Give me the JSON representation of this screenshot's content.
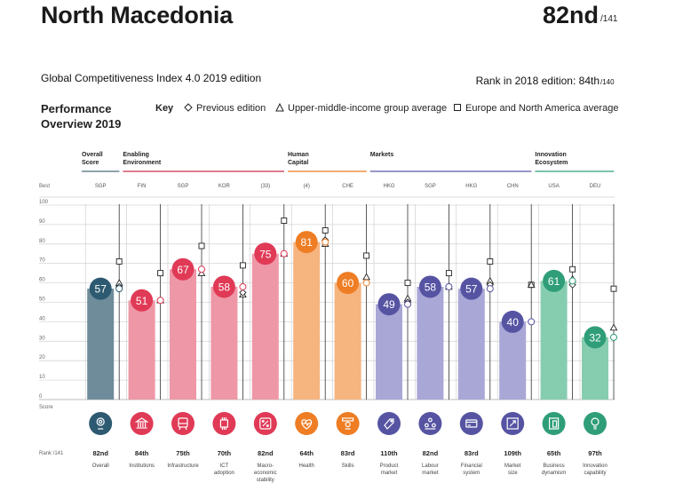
{
  "header": {
    "country": "North Macedonia",
    "rank": "82nd",
    "rank_of": "/141",
    "edition": "Global Competitiveness Index 4.0 2019 edition",
    "rank_2018": "Rank in 2018 edition: 84th",
    "rank_2018_of": "/140"
  },
  "section": {
    "title_line1": "Performance",
    "title_line2": "Overview 2019"
  },
  "key": {
    "label": "Key",
    "items": [
      {
        "symbol": "diamond",
        "label": "Previous edition"
      },
      {
        "symbol": "triangle",
        "label": "Upper-middle-income group average"
      },
      {
        "symbol": "square",
        "label": "Europe and North America average"
      }
    ]
  },
  "chart_data": {
    "type": "bar",
    "ylim": [
      0,
      100
    ],
    "yticks": [
      0,
      10,
      20,
      30,
      40,
      50,
      60,
      70,
      80,
      90,
      100
    ],
    "best_label": "Best",
    "score_label": "Score",
    "rank_label": "Rank /141",
    "groups": [
      {
        "name": "Overall Score",
        "line1": "Overall",
        "line2": "Score",
        "color": "#4e6e7e",
        "start": 0,
        "end": 0
      },
      {
        "name": "Enabling Environment",
        "line1": "Enabling",
        "line2": "Environment",
        "color": "#c8334a",
        "start": 1,
        "end": 4
      },
      {
        "name": "Human Capital",
        "line1": "Human",
        "line2": "Capital",
        "color": "#e97c20",
        "start": 5,
        "end": 6
      },
      {
        "name": "Markets",
        "line1": "Markets",
        "line2": "",
        "color": "#5a58a6",
        "start": 7,
        "end": 10
      },
      {
        "name": "Innovation Ecosystem",
        "line1": "Innovation",
        "line2": "Ecosystem",
        "color": "#2f9e78",
        "start": 11,
        "end": 12
      }
    ],
    "pillars": [
      {
        "name": "Overall",
        "label_lines": [
          "Overall"
        ],
        "best": "SGP",
        "score": 57,
        "previous": 58,
        "income_avg": 60,
        "region_avg": 71,
        "rank": "82nd",
        "icon": "overall-icon",
        "bar": "#6f8c9a",
        "circle": "#2d5a70"
      },
      {
        "name": "Institutions",
        "label_lines": [
          "Institutions"
        ],
        "best": "FIN",
        "score": 51,
        "previous": 51,
        "income_avg": 51,
        "region_avg": 65,
        "rank": "84th",
        "icon": "institutions-icon",
        "bar": "#ee97a7",
        "circle": "#e03a56"
      },
      {
        "name": "Infrastructure",
        "label_lines": [
          "Infrastructure"
        ],
        "best": "SGP",
        "score": 67,
        "previous": 67,
        "income_avg": 65,
        "region_avg": 79,
        "rank": "75th",
        "icon": "infrastructure-icon",
        "bar": "#ee97a7",
        "circle": "#e03a56"
      },
      {
        "name": "ICT adoption",
        "label_lines": [
          "ICT",
          "adoption"
        ],
        "best": "KOR",
        "score": 58,
        "previous": 55,
        "income_avg": 54,
        "region_avg": 69,
        "rank": "70th",
        "icon": "ict-icon",
        "bar": "#ee97a7",
        "circle": "#e03a56"
      },
      {
        "name": "Macro-economic stability",
        "label_lines": [
          "Macro-",
          "economic",
          "stability"
        ],
        "best": "(33)",
        "score": 75,
        "previous": 75,
        "income_avg": 75,
        "region_avg": 92,
        "rank": "82nd",
        "icon": "macro-icon",
        "bar": "#ee97a7",
        "circle": "#e03a56"
      },
      {
        "name": "Health",
        "label_lines": [
          "Health"
        ],
        "best": "(4)",
        "score": 81,
        "previous": 82,
        "income_avg": 80,
        "region_avg": 87,
        "rank": "64th",
        "icon": "health-icon",
        "bar": "#f6b47f",
        "circle": "#ee7d24"
      },
      {
        "name": "Skills",
        "label_lines": [
          "Skills"
        ],
        "best": "CHE",
        "score": 60,
        "previous": 60,
        "income_avg": 63,
        "region_avg": 74,
        "rank": "83rd",
        "icon": "skills-icon",
        "bar": "#f6b47f",
        "circle": "#ee7d24"
      },
      {
        "name": "Product market",
        "label_lines": [
          "Product",
          "market"
        ],
        "best": "HKG",
        "score": 49,
        "previous": 50,
        "income_avg": 52,
        "region_avg": 60,
        "rank": "110th",
        "icon": "product-market-icon",
        "bar": "#a9a7d6",
        "circle": "#5654a2"
      },
      {
        "name": "Labour market",
        "label_lines": [
          "Labour",
          "market"
        ],
        "best": "SGP",
        "score": 58,
        "previous": 58,
        "income_avg": 58,
        "region_avg": 65,
        "rank": "82nd",
        "icon": "labour-market-icon",
        "bar": "#a9a7d6",
        "circle": "#5654a2"
      },
      {
        "name": "Financial system",
        "label_lines": [
          "Financial",
          "system"
        ],
        "best": "HKG",
        "score": 57,
        "previous": 59,
        "income_avg": 61,
        "region_avg": 71,
        "rank": "83rd",
        "icon": "financial-system-icon",
        "bar": "#a9a7d6",
        "circle": "#5654a2"
      },
      {
        "name": "Market size",
        "label_lines": [
          "Market",
          "size"
        ],
        "best": "CHN",
        "score": 40,
        "previous": 40,
        "income_avg": 59,
        "region_avg": 59,
        "rank": "109th",
        "icon": "market-size-icon",
        "bar": "#a9a7d6",
        "circle": "#5654a2"
      },
      {
        "name": "Business dynamism",
        "label_lines": [
          "Business",
          "dynamism"
        ],
        "best": "USA",
        "score": 61,
        "previous": 59,
        "income_avg": 62,
        "region_avg": 67,
        "rank": "65th",
        "icon": "business-dynamism-icon",
        "bar": "#86cdb0",
        "circle": "#2f9e78"
      },
      {
        "name": "Innovation capability",
        "label_lines": [
          "Innovation",
          "capability"
        ],
        "best": "DEU",
        "score": 32,
        "previous": 32,
        "income_avg": 37,
        "region_avg": 57,
        "rank": "97th",
        "icon": "innovation-capability-icon",
        "bar": "#86cdb0",
        "circle": "#2f9e78"
      }
    ]
  }
}
